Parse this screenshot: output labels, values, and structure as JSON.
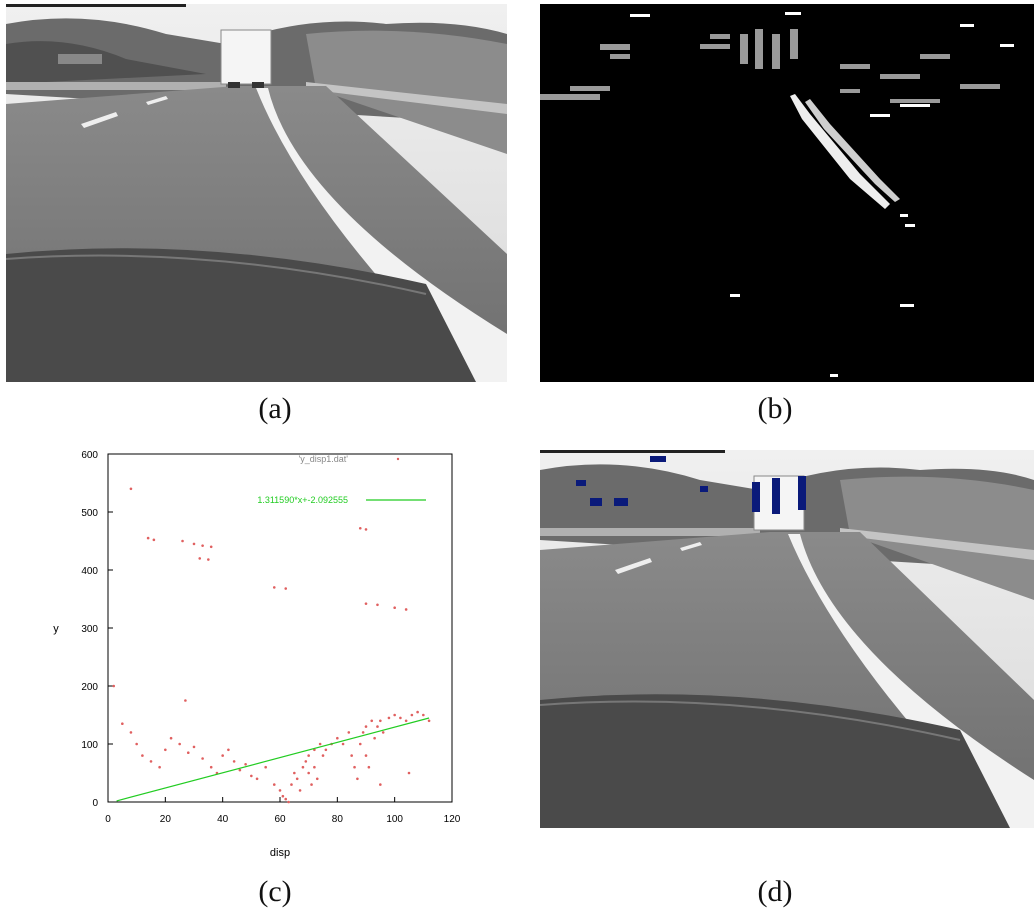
{
  "captions": [
    "(a)",
    "(b)",
    "(c)",
    "(d)"
  ],
  "colors": {
    "scatter": "#e06060",
    "fit_line": "#22cc22",
    "obstacle": "#0a1a7a",
    "disparity_bg": "#000000"
  },
  "chart_data": {
    "type": "scatter",
    "xlabel": "disp",
    "ylabel": "y",
    "xlim": [
      0,
      120
    ],
    "ylim": [
      0,
      600
    ],
    "xticks": [
      "0",
      "20",
      "40",
      "60",
      "80",
      "100",
      "120"
    ],
    "yticks": [
      "0",
      "100",
      "200",
      "300",
      "400",
      "500",
      "600"
    ],
    "grid": false,
    "legend_position": "top-right",
    "series": [
      {
        "name": "'y_disp1.dat'",
        "kind": "points",
        "points": [
          [
            8,
            540
          ],
          [
            14,
            455
          ],
          [
            16,
            452
          ],
          [
            26,
            450
          ],
          [
            30,
            445
          ],
          [
            33,
            442
          ],
          [
            36,
            440
          ],
          [
            32,
            420
          ],
          [
            35,
            418
          ],
          [
            58,
            370
          ],
          [
            62,
            368
          ],
          [
            88,
            472
          ],
          [
            90,
            470
          ],
          [
            90,
            342
          ],
          [
            94,
            340
          ],
          [
            100,
            335
          ],
          [
            104,
            332
          ],
          [
            2,
            200
          ],
          [
            27,
            175
          ],
          [
            5,
            135
          ],
          [
            8,
            120
          ],
          [
            10,
            100
          ],
          [
            12,
            80
          ],
          [
            15,
            70
          ],
          [
            18,
            60
          ],
          [
            20,
            90
          ],
          [
            22,
            110
          ],
          [
            25,
            100
          ],
          [
            28,
            85
          ],
          [
            30,
            95
          ],
          [
            33,
            75
          ],
          [
            36,
            60
          ],
          [
            38,
            50
          ],
          [
            40,
            80
          ],
          [
            42,
            90
          ],
          [
            44,
            70
          ],
          [
            46,
            55
          ],
          [
            48,
            65
          ],
          [
            50,
            45
          ],
          [
            52,
            40
          ],
          [
            55,
            60
          ],
          [
            58,
            30
          ],
          [
            60,
            20
          ],
          [
            61,
            10
          ],
          [
            62,
            5
          ],
          [
            63,
            0
          ],
          [
            64,
            30
          ],
          [
            65,
            50
          ],
          [
            66,
            40
          ],
          [
            67,
            20
          ],
          [
            68,
            60
          ],
          [
            69,
            70
          ],
          [
            70,
            80
          ],
          [
            70,
            50
          ],
          [
            71,
            30
          ],
          [
            72,
            90
          ],
          [
            72,
            60
          ],
          [
            73,
            40
          ],
          [
            74,
            100
          ],
          [
            75,
            80
          ],
          [
            76,
            90
          ],
          [
            78,
            100
          ],
          [
            80,
            110
          ],
          [
            82,
            100
          ],
          [
            84,
            120
          ],
          [
            85,
            80
          ],
          [
            86,
            60
          ],
          [
            87,
            40
          ],
          [
            88,
            100
          ],
          [
            89,
            120
          ],
          [
            90,
            130
          ],
          [
            90,
            80
          ],
          [
            91,
            60
          ],
          [
            92,
            140
          ],
          [
            93,
            110
          ],
          [
            94,
            130
          ],
          [
            95,
            140
          ],
          [
            96,
            120
          ],
          [
            98,
            145
          ],
          [
            100,
            150
          ],
          [
            102,
            145
          ],
          [
            104,
            140
          ],
          [
            106,
            150
          ],
          [
            108,
            155
          ],
          [
            110,
            150
          ],
          [
            112,
            140
          ],
          [
            105,
            50
          ],
          [
            95,
            30
          ]
        ]
      },
      {
        "name": "1.311590*x+-2.092555",
        "kind": "line",
        "slope": 1.31159,
        "intercept": -2.092555,
        "x_range": [
          3,
          112
        ]
      }
    ]
  }
}
